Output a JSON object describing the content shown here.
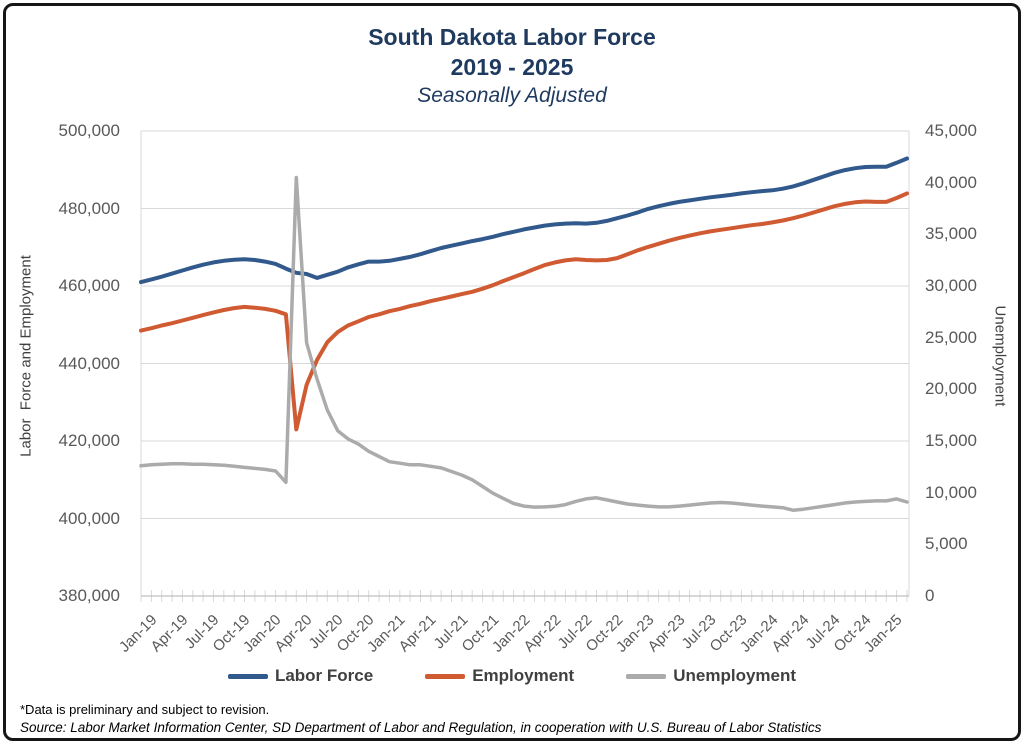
{
  "header": {
    "title_line1": "South Dakota Labor Force",
    "title_line2": "2019 - 2025",
    "subtitle": "Seasonally Adjusted"
  },
  "footer": {
    "footnote": "*Data is preliminary and subject to revision.",
    "source": "Source: Labor Market Information Center, SD Department of Labor and Regulation, in cooperation with U.S. Bureau of Labor Statistics"
  },
  "colors": {
    "title": "#1f3a5f",
    "labor_force": "#31598C",
    "employment": "#D05A32",
    "unemployment": "#ABABAB",
    "gridline": "#D9D9D9",
    "axis_line": "#BFBFBF",
    "tick_text": "#595959",
    "label_text": "#404040",
    "frame_border": "#161616"
  },
  "chart_data": {
    "type": "line",
    "title": "South Dakota Labor Force 2019 - 2025, Seasonally Adjusted",
    "frequency": "monthly",
    "points_start": "Jan-19",
    "points_end": "Mar-25",
    "grid": "horizontal",
    "legend_position": "bottom",
    "left_axis": {
      "title": "Labor  Force and Employment",
      "min": 380000,
      "max": 500000,
      "step": 20000,
      "tick_labels": [
        "500,000",
        "480,000",
        "460,000",
        "440,000",
        "420,000",
        "400,000",
        "380,000"
      ]
    },
    "right_axis": {
      "title": "Unemployment",
      "min": 0,
      "max": 45000,
      "step": 5000,
      "tick_labels": [
        "45,000",
        "40,000",
        "35,000",
        "30,000",
        "25,000",
        "20,000",
        "15,000",
        "10,000",
        "5,000",
        "0"
      ]
    },
    "x_tick_labels": [
      "Jan-19",
      "Apr-19",
      "Jul-19",
      "Oct-19",
      "Jan-20",
      "Apr-20",
      "Jul-20",
      "Oct-20",
      "Jan-21",
      "Apr-21",
      "Jul-21",
      "Oct-21",
      "Jan-22",
      "Apr-22",
      "Jul-22",
      "Oct-22",
      "Jan-23",
      "Apr-23",
      "Jul-23",
      "Oct-23",
      "Jan-24",
      "Apr-24",
      "Jul-24",
      "Oct-24",
      "Jan-25"
    ],
    "series": [
      {
        "name": "Labor Force",
        "axis": "left",
        "color": "#31598C",
        "width": 4,
        "values": [
          461000,
          461700,
          462400,
          463200,
          464000,
          464800,
          465500,
          466100,
          466500,
          466800,
          466900,
          466700,
          466300,
          465700,
          464500,
          463400,
          463100,
          462100,
          462900,
          463700,
          464800,
          465600,
          466300,
          466300,
          466500,
          467000,
          467500,
          468200,
          469000,
          469800,
          470400,
          471000,
          471600,
          472100,
          472700,
          473400,
          474000,
          474600,
          475100,
          475600,
          475900,
          476100,
          476200,
          476100,
          476300,
          476800,
          477500,
          478200,
          479000,
          479900,
          480600,
          481200,
          481700,
          482100,
          482500,
          482900,
          483200,
          483500,
          483900,
          484200,
          484500,
          484700,
          485100,
          485700,
          486500,
          487400,
          488300,
          489200,
          489900,
          490400,
          490700,
          490800,
          490800,
          491800,
          492900
        ]
      },
      {
        "name": "Employment",
        "axis": "left",
        "color": "#D05A32",
        "width": 4,
        "values": [
          448500,
          449100,
          449800,
          450400,
          451100,
          451800,
          452500,
          453200,
          453800,
          454300,
          454600,
          454400,
          454100,
          453600,
          452700,
          423000,
          434500,
          440900,
          445500,
          448100,
          449800,
          450900,
          452000,
          452700,
          453500,
          454100,
          454800,
          455400,
          456100,
          456700,
          457300,
          457900,
          458500,
          459300,
          460200,
          461300,
          462300,
          463300,
          464400,
          465400,
          466100,
          466600,
          466900,
          466700,
          466600,
          466700,
          467200,
          468200,
          469200,
          470100,
          470900,
          471700,
          472400,
          473000,
          473600,
          474100,
          474500,
          474900,
          475300,
          475700,
          476000,
          476400,
          476900,
          477500,
          478200,
          479000,
          479800,
          480600,
          481200,
          481600,
          481800,
          481700,
          481700,
          482700,
          483900
        ]
      },
      {
        "name": "Unemployment",
        "axis": "right",
        "color": "#ABABAB",
        "width": 3.5,
        "values": [
          12600,
          12700,
          12750,
          12800,
          12800,
          12750,
          12750,
          12700,
          12650,
          12550,
          12450,
          12350,
          12250,
          12100,
          11000,
          40500,
          24500,
          21000,
          18000,
          16000,
          15200,
          14700,
          14000,
          13500,
          13000,
          12850,
          12700,
          12700,
          12550,
          12400,
          12050,
          11700,
          11250,
          10600,
          9950,
          9450,
          8950,
          8700,
          8600,
          8620,
          8680,
          8850,
          9150,
          9400,
          9500,
          9300,
          9100,
          8900,
          8800,
          8700,
          8620,
          8620,
          8700,
          8800,
          8900,
          9000,
          9050,
          9000,
          8900,
          8800,
          8700,
          8620,
          8550,
          8300,
          8400,
          8550,
          8700,
          8850,
          9000,
          9100,
          9150,
          9200,
          9200,
          9400,
          9100
        ]
      }
    ]
  }
}
